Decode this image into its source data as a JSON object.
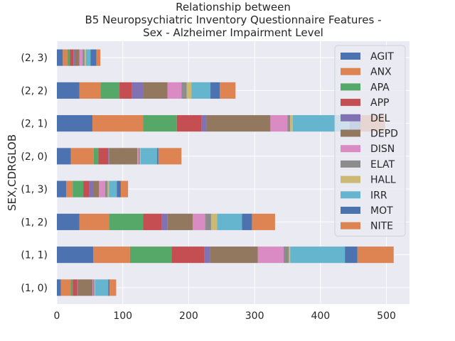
{
  "chart_data": {
    "type": "bar",
    "orientation": "horizontal",
    "stacked": true,
    "title_lines": [
      "Relationship between",
      "B5 Neuropsychiatric Inventory Questionnaire Features -",
      "Sex - Alzheimer Impairment Level"
    ],
    "xlabel": "",
    "ylabel": "SEX,CDRGLOB",
    "xlim": [
      0,
      535
    ],
    "xticks": [
      0,
      100,
      200,
      300,
      400,
      500
    ],
    "grid": true,
    "legend_position": "top-right",
    "categories": [
      "(1, 0)",
      "(1, 1)",
      "(1, 2)",
      "(1, 3)",
      "(2, 0)",
      "(2, 1)",
      "(2, 2)",
      "(2, 3)"
    ],
    "series": [
      {
        "name": "AGIT",
        "color": "#4c72b0",
        "values": [
          6,
          55,
          34,
          14,
          21,
          54,
          34,
          9
        ]
      },
      {
        "name": "ANX",
        "color": "#dd8452",
        "values": [
          15,
          56,
          45,
          10,
          35,
          77,
          32,
          7
        ]
      },
      {
        "name": "APA",
        "color": "#55a868",
        "values": [
          3,
          63,
          52,
          16,
          7,
          51,
          29,
          4
        ]
      },
      {
        "name": "APP",
        "color": "#c44e52",
        "values": [
          7,
          50,
          28,
          9,
          15,
          37,
          19,
          5
        ]
      },
      {
        "name": "DEL",
        "color": "#8172b3",
        "values": [
          1,
          8,
          9,
          6,
          1,
          8,
          17,
          3
        ]
      },
      {
        "name": "DEPD",
        "color": "#937860",
        "values": [
          22,
          73,
          38,
          9,
          43,
          97,
          37,
          6
        ]
      },
      {
        "name": "DISN",
        "color": "#da8bc3",
        "values": [
          1,
          39,
          19,
          9,
          2,
          26,
          21,
          5
        ]
      },
      {
        "name": "ELAT",
        "color": "#8c8c8c",
        "values": [
          2,
          8,
          9,
          4,
          2,
          4,
          8,
          3
        ]
      },
      {
        "name": "HALL",
        "color": "#ccb974",
        "values": [
          1,
          2,
          9,
          2,
          1,
          4,
          7,
          2
        ]
      },
      {
        "name": "IRR",
        "color": "#64b5cd",
        "values": [
          20,
          83,
          38,
          12,
          25,
          86,
          29,
          7
        ]
      },
      {
        "name": "MOT",
        "color": "#4c72b0",
        "values": [
          2,
          19,
          15,
          6,
          2,
          17,
          14,
          9
        ]
      },
      {
        "name": "NITE",
        "color": "#dd8452",
        "values": [
          10,
          55,
          35,
          11,
          35,
          37,
          24,
          6
        ]
      }
    ]
  }
}
